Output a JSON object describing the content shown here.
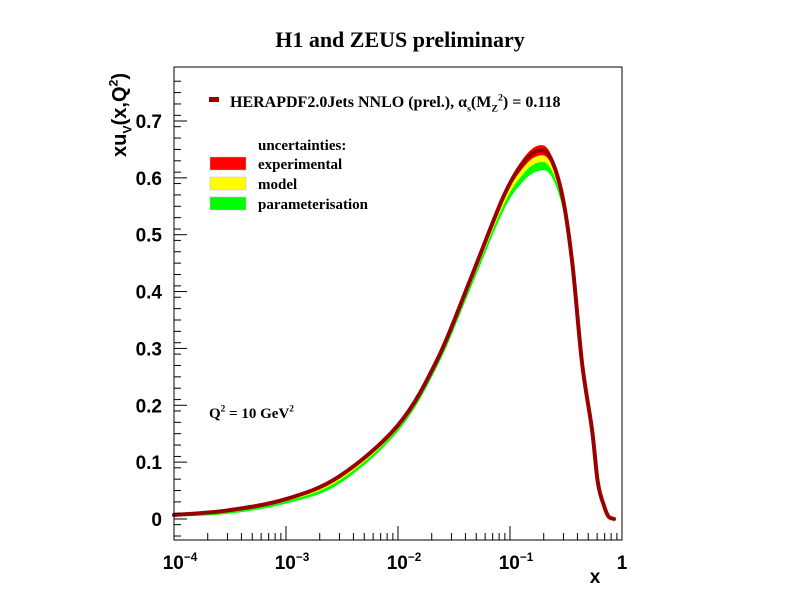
{
  "chart_data": {
    "type": "line",
    "title": "H1 and ZEUS preliminary",
    "xlabel": "x",
    "ylabel": "xu_V(x,Q^2)",
    "xscale": "log",
    "xlim": [
      0.0001,
      1
    ],
    "ylim": [
      -0.037,
      0.795
    ],
    "x_tick_labels": [
      "10^-4",
      "10^-3",
      "10^-2",
      "10^-1",
      "1"
    ],
    "y_tick_labels": [
      "0",
      "0.1",
      "0.2",
      "0.3",
      "0.4",
      "0.5",
      "0.6",
      "0.7"
    ],
    "grid": false,
    "legend": {
      "placement": "top-left",
      "main_entry": "HERAPDF2.0Jets NNLO (prel.), α_s(M_Z^2) = 0.118",
      "uncertainties_header": "uncertainties:",
      "entries": [
        {
          "name": "experimental",
          "color": "#ff0000"
        },
        {
          "name": "model",
          "color": "#ffff00"
        },
        {
          "name": "parameterisation",
          "color": "#00ff00"
        }
      ]
    },
    "annotation": "Q^2 = 10 GeV^2",
    "series": [
      {
        "name": "HERAPDF2.0Jets NNLO (prel.)",
        "color": "#990000",
        "x": [
          0.0001,
          0.0003,
          0.001,
          0.003,
          0.01,
          0.0224,
          0.044,
          0.087,
          0.13,
          0.18,
          0.23,
          0.295,
          0.36,
          0.44,
          0.54,
          0.61,
          0.7,
          0.76,
          0.85
        ],
        "y": [
          0.007,
          0.015,
          0.035,
          0.075,
          0.165,
          0.28,
          0.42,
          0.566,
          0.625,
          0.648,
          0.635,
          0.566,
          0.45,
          0.274,
          0.157,
          0.063,
          0.02,
          0.004,
          0.0
        ],
        "exp_unc": [
          0.001,
          0.001,
          0.001,
          0.002,
          0.002,
          0.003,
          0.004,
          0.006,
          0.008,
          0.009,
          0.008,
          0.006,
          0.004,
          0.003,
          0.002,
          0.002,
          0.001,
          0.001,
          0.0
        ],
        "model_unc_down": [
          0.001,
          0.002,
          0.003,
          0.005,
          0.004,
          0.004,
          0.006,
          0.009,
          0.011,
          0.012,
          0.01,
          0.006,
          0.003,
          0.002,
          0.001,
          0.001,
          0.0,
          0.0,
          0.0
        ],
        "param_unc_down": [
          0.001,
          0.003,
          0.004,
          0.006,
          0.005,
          0.005,
          0.007,
          0.01,
          0.013,
          0.015,
          0.012,
          0.007,
          0.003,
          0.002,
          0.001,
          0.001,
          0.0,
          0.0,
          0.0
        ]
      }
    ]
  }
}
